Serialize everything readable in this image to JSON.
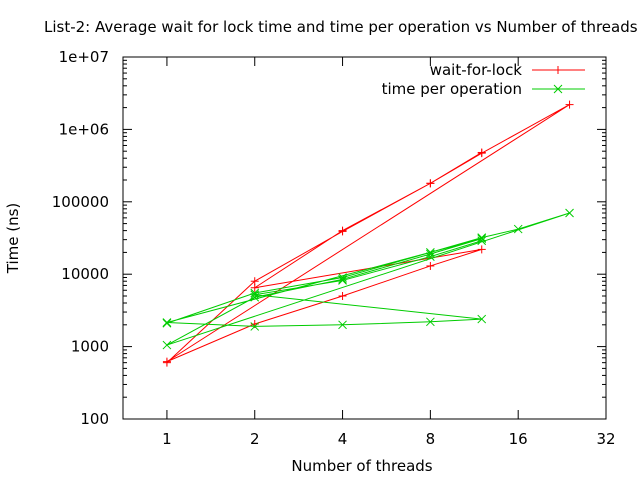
{
  "chart_data": {
    "type": "line",
    "title": "List-2: Average wait for lock time and time per operation vs Number of threads",
    "xlabel": "Number of threads",
    "ylabel": "Time (ns)",
    "x_scale": "log2",
    "y_scale": "log10",
    "xlim": [
      0.707,
      32
    ],
    "ylim": [
      100,
      10000000
    ],
    "x_ticks": [
      1,
      2,
      4,
      8,
      16,
      32
    ],
    "x_tick_labels": [
      "1",
      "2",
      "4",
      "8",
      "16",
      "32"
    ],
    "y_ticks": [
      100,
      1000,
      10000,
      100000,
      1000000,
      10000000
    ],
    "y_tick_labels": [
      "100",
      "1000",
      "10000",
      "100000",
      "1e+06",
      "1e+07"
    ],
    "grid": false,
    "legend_position": "top-right",
    "series": [
      {
        "name": "wait-for-lock",
        "color": "#ff0000",
        "marker": "plus",
        "x": [
          1,
          2,
          4,
          8,
          12,
          24,
          1,
          2,
          4,
          8,
          12,
          2,
          4,
          8,
          12
        ],
        "y": [
          600,
          8000,
          39000,
          180000,
          470000,
          2200000,
          620,
          2050,
          5000,
          13000,
          22000,
          6500,
          40000,
          180000,
          480000
        ]
      },
      {
        "name": "time per operation",
        "color": "#00cc00",
        "marker": "cross",
        "x": [
          1,
          2,
          4,
          8,
          12,
          16,
          24,
          1,
          2,
          4,
          8,
          12,
          1,
          2,
          4,
          8,
          12,
          2,
          4,
          8,
          12
        ],
        "y": [
          2100,
          5500,
          9000,
          20000,
          32000,
          42000,
          70000,
          1050,
          4800,
          8500,
          19000,
          31000,
          2150,
          1900,
          2000,
          2200,
          2400,
          5200,
          8200,
          17500,
          29000
        ]
      }
    ]
  }
}
